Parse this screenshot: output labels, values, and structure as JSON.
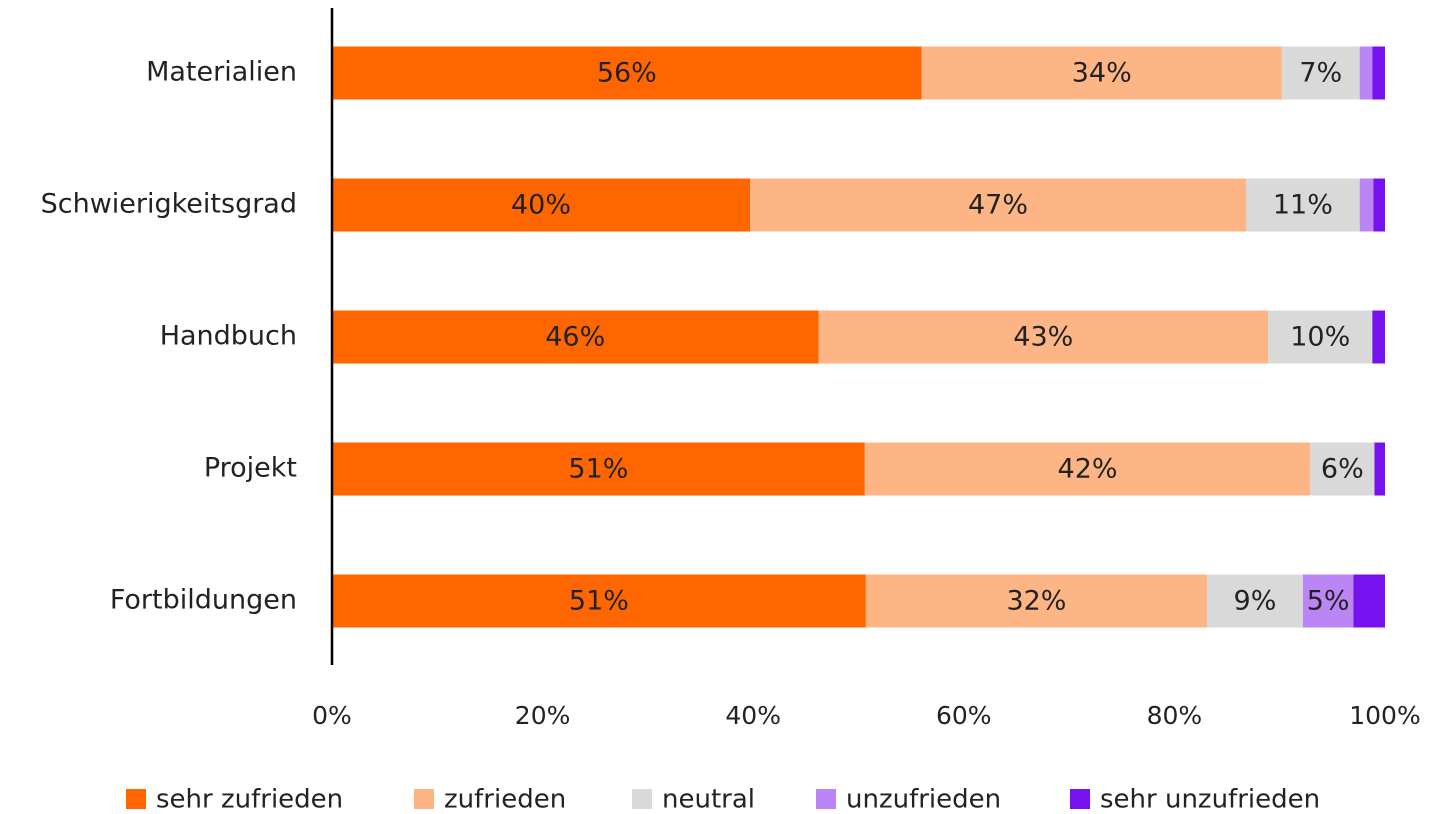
{
  "chart_data": {
    "type": "stacked-bar-horizontal",
    "categories": [
      "Materialien",
      "Schwierigkeitsgrad",
      "Handbuch",
      "Projekt",
      "Fortbildungen"
    ],
    "series": [
      {
        "name": "sehr zufrieden",
        "color": "#ff6600",
        "values": [
          56.0,
          39.7,
          46.2,
          50.6,
          50.7
        ],
        "value_labels": [
          "56%",
          "40%",
          "46%",
          "51%",
          "51%"
        ]
      },
      {
        "name": "zufrieden",
        "color": "#fdb585",
        "values": [
          34.2,
          47.1,
          42.7,
          42.3,
          32.4
        ],
        "value_labels": [
          "34%",
          "47%",
          "43%",
          "42%",
          "32%"
        ]
      },
      {
        "name": "neutral",
        "color": "#d9d9d9",
        "values": [
          7.4,
          10.8,
          9.9,
          6.1,
          9.1
        ],
        "value_labels": [
          "7%",
          "11%",
          "10%",
          "6%",
          "9%"
        ]
      },
      {
        "name": "unzufrieden",
        "color": "#bb85f5",
        "values": [
          1.2,
          1.3,
          0,
          0,
          4.8
        ],
        "value_labels": [
          null,
          null,
          null,
          null,
          "5%"
        ]
      },
      {
        "name": "sehr unzufrieden",
        "color": "#7612f0",
        "values": [
          1.2,
          1.1,
          1.2,
          1.0,
          3.0
        ],
        "value_labels": [
          null,
          null,
          null,
          null,
          null
        ]
      }
    ],
    "xlim": [
      0,
      100
    ],
    "xticks": [
      {
        "value": 0,
        "label": "0%"
      },
      {
        "value": 20,
        "label": "20%"
      },
      {
        "value": 40,
        "label": "40%"
      },
      {
        "value": 60,
        "label": "60%"
      },
      {
        "value": 80,
        "label": "80%"
      },
      {
        "value": 100,
        "label": "100%"
      }
    ],
    "legend": "bottom"
  }
}
